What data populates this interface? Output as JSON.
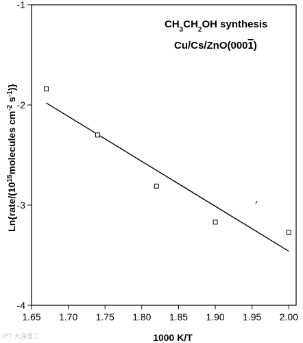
{
  "chart_data": {
    "type": "scatter",
    "xlabel": "1000 K/T",
    "ylabel": "Ln{rate/(10^15molecules cm^-2 s^-1)}",
    "xlim": [
      1.65,
      2.01
    ],
    "ylim": [
      -4,
      -1
    ],
    "x_ticks": [
      "1.65",
      "1.70",
      "1.75",
      "1.80",
      "1.85",
      "1.90",
      "1.95",
      "2.00"
    ],
    "y_ticks": [
      "-1",
      "-2",
      "-3",
      "-4"
    ],
    "grid": false,
    "series": [
      {
        "points": [
          {
            "x": 1.67,
            "y": -1.84
          },
          {
            "x": 1.74,
            "y": -2.3
          },
          {
            "x": 1.82,
            "y": -2.81
          },
          {
            "x": 1.9,
            "y": -3.17
          },
          {
            "x": 2.0,
            "y": -3.27
          }
        ],
        "marker": "open-square",
        "color": "#000000"
      }
    ],
    "fit_line": {
      "x": [
        1.67,
        2.0
      ],
      "y": [
        -1.98,
        -3.46
      ]
    },
    "annotations": [
      "CH3CH2OH synthesis",
      "Cu/Cs/ZnO(0001)"
    ]
  },
  "watermark": "IPT 大连理工"
}
